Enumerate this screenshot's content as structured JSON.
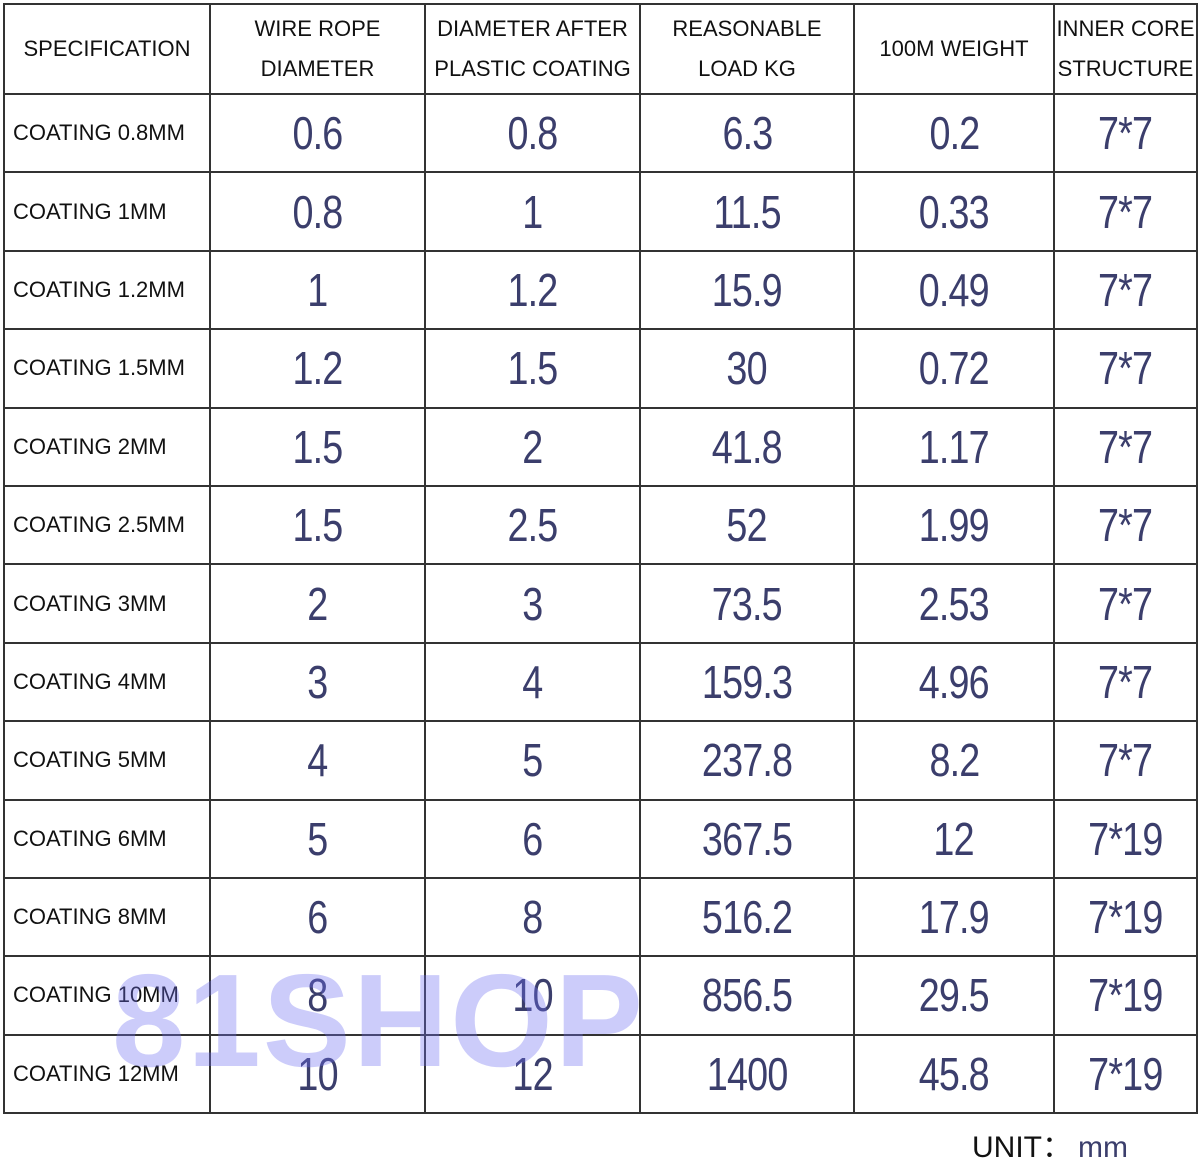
{
  "table": {
    "headers": [
      [
        "SPECIFICATION"
      ],
      [
        "WIRE ROPE",
        "DIAMETER"
      ],
      [
        "DIAMETER AFTER",
        "PLASTIC COATING"
      ],
      [
        "REASONABLE",
        "LOAD KG"
      ],
      [
        "100M WEIGHT"
      ],
      [
        "INNER CORE",
        "STRUCTURE"
      ]
    ],
    "rows": [
      [
        "COATING 0.8MM",
        "0.6",
        "0.8",
        "6.3",
        "0.2",
        "7*7"
      ],
      [
        "COATING 1MM",
        "0.8",
        "1",
        "11.5",
        "0.33",
        "7*7"
      ],
      [
        "COATING 1.2MM",
        "1",
        "1.2",
        "15.9",
        "0.49",
        "7*7"
      ],
      [
        "COATING 1.5MM",
        "1.2",
        "1.5",
        "30",
        "0.72",
        "7*7"
      ],
      [
        "COATING 2MM",
        "1.5",
        "2",
        "41.8",
        "1.17",
        "7*7"
      ],
      [
        "COATING 2.5MM",
        "1.5",
        "2.5",
        "52",
        "1.99",
        "7*7"
      ],
      [
        "COATING 3MM",
        "2",
        "3",
        "73.5",
        "2.53",
        "7*7"
      ],
      [
        "COATING 4MM",
        "3",
        "4",
        "159.3",
        "4.96",
        "7*7"
      ],
      [
        "COATING 5MM",
        "4",
        "5",
        "237.8",
        "8.2",
        "7*7"
      ],
      [
        "COATING 6MM",
        "5",
        "6",
        "367.5",
        "12",
        "7*19"
      ],
      [
        "COATING 8MM",
        "6",
        "8",
        "516.2",
        "17.9",
        "7*19"
      ],
      [
        "COATING 10MM",
        "8",
        "10",
        "856.5",
        "29.5",
        "7*19"
      ],
      [
        "COATING 12MM",
        "10",
        "12",
        "1400",
        "45.8",
        "7*19"
      ]
    ]
  },
  "unit": {
    "label": "UNIT：",
    "value": "mm"
  },
  "watermark": "81SHOP",
  "colors": {
    "value_text": "#3b3e6c",
    "watermark": "#6e6ef0"
  }
}
